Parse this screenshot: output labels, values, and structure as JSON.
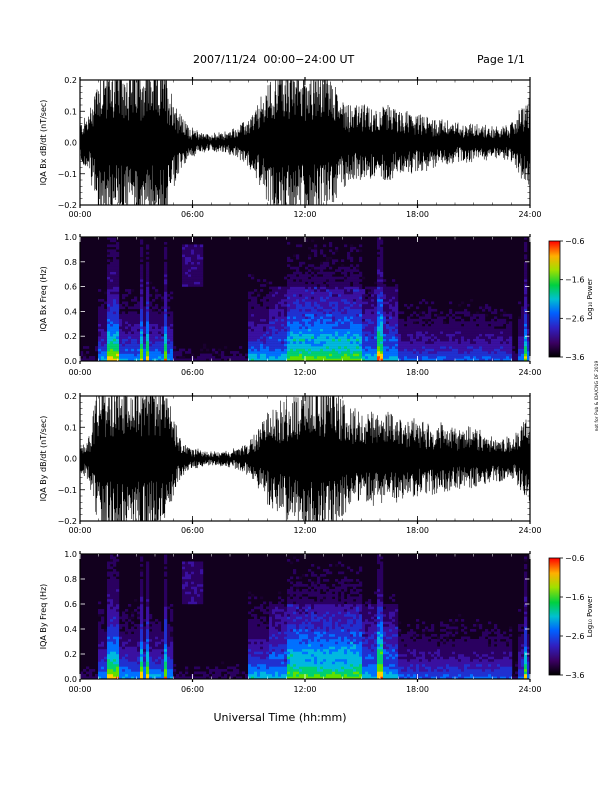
{
  "header": {
    "title": "2007/11/24  00:00−24:00 UT",
    "page": "Page 1/1"
  },
  "side_note": "not for Pub & IDA/CNG DF 2019",
  "chart_data": [
    {
      "type": "line",
      "name_label": "IQA Bx dB/dt (nT/sec)",
      "ylabel": "IQA Bx dB/dt (nT/sec)",
      "xlabel": "",
      "xlim": [
        "00:00",
        "24:00"
      ],
      "xticks": [
        "00:00",
        "06:00",
        "12:00",
        "18:00",
        "24:00"
      ],
      "ylim": [
        -0.2,
        0.2
      ],
      "yticks": [
        "0.2",
        "0.1",
        "0.0",
        "−0.1",
        "−0.2"
      ],
      "yticks_values": [
        0.2,
        0.1,
        0.0,
        -0.1,
        -0.2
      ],
      "envelope_hours": [
        0,
        0.5,
        1,
        1.3,
        1.5,
        1.8,
        2,
        2.5,
        3,
        3.3,
        3.6,
        4,
        4.5,
        5,
        5.5,
        6,
        7,
        8,
        9,
        9.5,
        10,
        10.5,
        11,
        11.5,
        12,
        12.5,
        13,
        13.5,
        14,
        14.5,
        15,
        15.5,
        16,
        16.5,
        17,
        17.5,
        18,
        18.5,
        19,
        19.5,
        20,
        20.5,
        21,
        21.5,
        22,
        22.5,
        23,
        23.5,
        24
      ],
      "envelope_amplitude": [
        0.05,
        0.08,
        0.2,
        0.2,
        0.2,
        0.2,
        0.2,
        0.2,
        0.2,
        0.2,
        0.2,
        0.2,
        0.2,
        0.12,
        0.06,
        0.035,
        0.02,
        0.03,
        0.06,
        0.1,
        0.15,
        0.2,
        0.2,
        0.2,
        0.2,
        0.2,
        0.2,
        0.16,
        0.12,
        0.1,
        0.1,
        0.09,
        0.09,
        0.1,
        0.08,
        0.08,
        0.07,
        0.07,
        0.06,
        0.06,
        0.05,
        0.05,
        0.05,
        0.045,
        0.04,
        0.04,
        0.05,
        0.09,
        0.12
      ]
    },
    {
      "type": "heatmap",
      "ylabel": "IQA Bx Freq (Hz)",
      "xlabel": "",
      "xlim": [
        "00:00",
        "24:00"
      ],
      "xticks": [
        "00:00",
        "06:00",
        "12:00",
        "18:00",
        "24:00"
      ],
      "ylim": [
        0.0,
        1.0
      ],
      "yticks": [
        "1.0",
        "0.8",
        "0.6",
        "0.4",
        "0.2",
        "0.0"
      ],
      "yticks_values": [
        1.0,
        0.8,
        0.6,
        0.4,
        0.2,
        0.0
      ],
      "colorbar_label": "Log₁₀ Power",
      "colorbar_ticks": [
        "−0.6",
        "−1.6",
        "−2.6",
        "−3.6"
      ],
      "colorbar_values": [
        -0.6,
        -1.6,
        -2.6,
        -3.6
      ]
    },
    {
      "type": "line",
      "ylabel": "IQA By dB/dt (nT/sec)",
      "xlabel": "",
      "xlim": [
        "00:00",
        "24:00"
      ],
      "xticks": [
        "00:00",
        "06:00",
        "12:00",
        "18:00",
        "24:00"
      ],
      "ylim": [
        -0.2,
        0.2
      ],
      "yticks": [
        "0.2",
        "0.1",
        "0.0",
        "−0.1",
        "−0.2"
      ],
      "yticks_values": [
        0.2,
        0.1,
        0.0,
        -0.1,
        -0.2
      ],
      "envelope_hours": [
        0,
        0.5,
        1,
        1.3,
        1.5,
        1.8,
        2,
        2.5,
        3,
        3.3,
        3.6,
        4,
        4.5,
        5,
        5.5,
        6,
        7,
        8,
        9,
        9.5,
        10,
        10.5,
        11,
        11.5,
        12,
        12.5,
        13,
        13.5,
        14,
        14.5,
        15,
        15.5,
        16,
        16.5,
        17,
        17.5,
        18,
        18.5,
        19,
        19.5,
        20,
        20.5,
        21,
        21.5,
        22,
        22.5,
        23,
        23.5,
        24
      ],
      "envelope_amplitude": [
        0.03,
        0.06,
        0.2,
        0.2,
        0.2,
        0.2,
        0.2,
        0.2,
        0.2,
        0.2,
        0.2,
        0.2,
        0.2,
        0.1,
        0.04,
        0.025,
        0.015,
        0.02,
        0.04,
        0.08,
        0.12,
        0.14,
        0.16,
        0.16,
        0.2,
        0.2,
        0.2,
        0.2,
        0.16,
        0.13,
        0.12,
        0.12,
        0.12,
        0.12,
        0.11,
        0.1,
        0.1,
        0.09,
        0.09,
        0.09,
        0.08,
        0.08,
        0.08,
        0.07,
        0.06,
        0.06,
        0.05,
        0.08,
        0.12
      ]
    },
    {
      "type": "heatmap",
      "ylabel": "IQA By Freq (Hz)",
      "xlabel": "Universal Time (hh:mm)",
      "xlim": [
        "00:00",
        "24:00"
      ],
      "xticks": [
        "00:00",
        "06:00",
        "12:00",
        "18:00",
        "24:00"
      ],
      "ylim": [
        0.0,
        1.0
      ],
      "yticks": [
        "1.0",
        "0.8",
        "0.6",
        "0.4",
        "0.2",
        "0.0"
      ],
      "yticks_values": [
        1.0,
        0.8,
        0.6,
        0.4,
        0.2,
        0.0
      ],
      "colorbar_label": "Log₁₀ Power",
      "colorbar_ticks": [
        "−0.6",
        "−1.6",
        "−2.6",
        "−3.6"
      ],
      "colorbar_values": [
        -0.6,
        -1.6,
        -2.6,
        -3.6
      ]
    }
  ]
}
